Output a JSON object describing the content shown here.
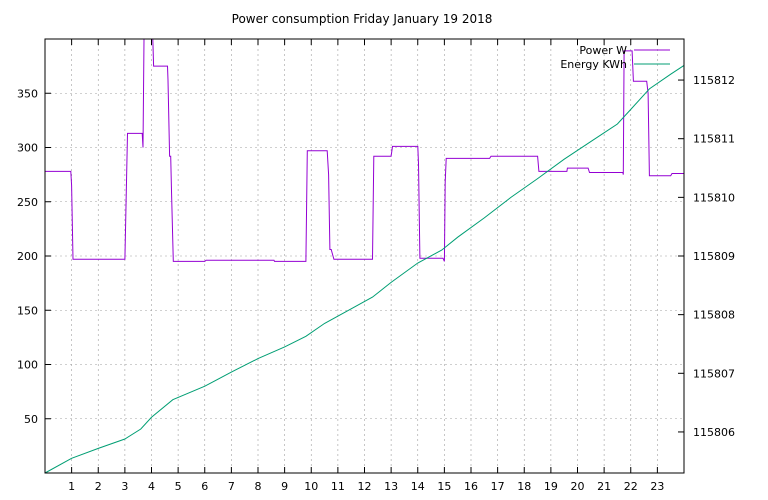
{
  "chart_data": {
    "type": "line",
    "title": "Power consumption Friday January 19 2018",
    "x_range": [
      0,
      24
    ],
    "x_ticks": [
      1,
      2,
      3,
      4,
      5,
      6,
      7,
      8,
      9,
      10,
      11,
      12,
      13,
      14,
      15,
      16,
      17,
      18,
      19,
      20,
      21,
      22,
      23
    ],
    "y_left": {
      "range": [
        0,
        400
      ],
      "ticks": [
        50,
        100,
        150,
        200,
        250,
        300,
        350
      ]
    },
    "y_right": {
      "range": [
        115805.3,
        115812.7
      ],
      "ticks": [
        115806,
        115807,
        115808,
        115809,
        115810,
        115811,
        115812
      ]
    },
    "grid": true,
    "legend_position": "top-right",
    "series": [
      {
        "name": "Power W",
        "axis": "left",
        "color": "#9400d3",
        "step": true,
        "points": [
          [
            0,
            278
          ],
          [
            0.97,
            278
          ],
          [
            1.0,
            265
          ],
          [
            1.05,
            197
          ],
          [
            3.0,
            197
          ],
          [
            3.05,
            255
          ],
          [
            3.1,
            313
          ],
          [
            3.65,
            313
          ],
          [
            3.68,
            300
          ],
          [
            3.72,
            400
          ],
          [
            4.05,
            400
          ],
          [
            4.08,
            375
          ],
          [
            4.6,
            375
          ],
          [
            4.62,
            362
          ],
          [
            4.68,
            292
          ],
          [
            4.72,
            292
          ],
          [
            4.75,
            260
          ],
          [
            4.82,
            195
          ],
          [
            6.0,
            195
          ],
          [
            6.05,
            196
          ],
          [
            8.0,
            196
          ],
          [
            8.6,
            196
          ],
          [
            8.62,
            195
          ],
          [
            9.8,
            195
          ],
          [
            9.85,
            297
          ],
          [
            10.6,
            297
          ],
          [
            10.65,
            275
          ],
          [
            10.7,
            206
          ],
          [
            10.75,
            206
          ],
          [
            10.85,
            197
          ],
          [
            12.3,
            197
          ],
          [
            12.35,
            292
          ],
          [
            13.0,
            292
          ],
          [
            13.05,
            301
          ],
          [
            14.0,
            301
          ],
          [
            14.03,
            285
          ],
          [
            14.08,
            198
          ],
          [
            14.95,
            198
          ],
          [
            15.0,
            195
          ],
          [
            15.03,
            268
          ],
          [
            15.07,
            290
          ],
          [
            16.7,
            290
          ],
          [
            16.75,
            292
          ],
          [
            18.5,
            292
          ],
          [
            18.55,
            278
          ],
          [
            19.6,
            278
          ],
          [
            19.62,
            281
          ],
          [
            20.4,
            281
          ],
          [
            20.45,
            277
          ],
          [
            21.7,
            277
          ],
          [
            21.72,
            275
          ],
          [
            21.75,
            389
          ],
          [
            22.05,
            389
          ],
          [
            22.1,
            361
          ],
          [
            22.6,
            361
          ],
          [
            22.65,
            350
          ],
          [
            22.7,
            274
          ],
          [
            23.5,
            274
          ],
          [
            23.55,
            276
          ],
          [
            24,
            276
          ]
        ]
      },
      {
        "name": "Energy KWh",
        "axis": "right",
        "color": "#009e73",
        "step": false,
        "points": [
          [
            0,
            115805.3
          ],
          [
            1,
            115805.55
          ],
          [
            2,
            115805.72
          ],
          [
            3,
            115805.88
          ],
          [
            3.6,
            115806.05
          ],
          [
            4.0,
            115806.25
          ],
          [
            4.8,
            115806.55
          ],
          [
            6,
            115806.78
          ],
          [
            7,
            115807.02
          ],
          [
            8,
            115807.25
          ],
          [
            9,
            115807.45
          ],
          [
            9.8,
            115807.63
          ],
          [
            10.5,
            115807.85
          ],
          [
            11.5,
            115808.1
          ],
          [
            12.3,
            115808.3
          ],
          [
            13,
            115808.55
          ],
          [
            14,
            115808.88
          ],
          [
            14.9,
            115809.1
          ],
          [
            15.5,
            115809.32
          ],
          [
            16.5,
            115809.65
          ],
          [
            17.5,
            115810.0
          ],
          [
            18.5,
            115810.32
          ],
          [
            19.5,
            115810.65
          ],
          [
            20.5,
            115810.95
          ],
          [
            21.5,
            115811.25
          ],
          [
            22,
            115811.5
          ],
          [
            22.7,
            115811.85
          ],
          [
            23.5,
            115812.1
          ],
          [
            24,
            115812.25
          ]
        ]
      }
    ]
  }
}
